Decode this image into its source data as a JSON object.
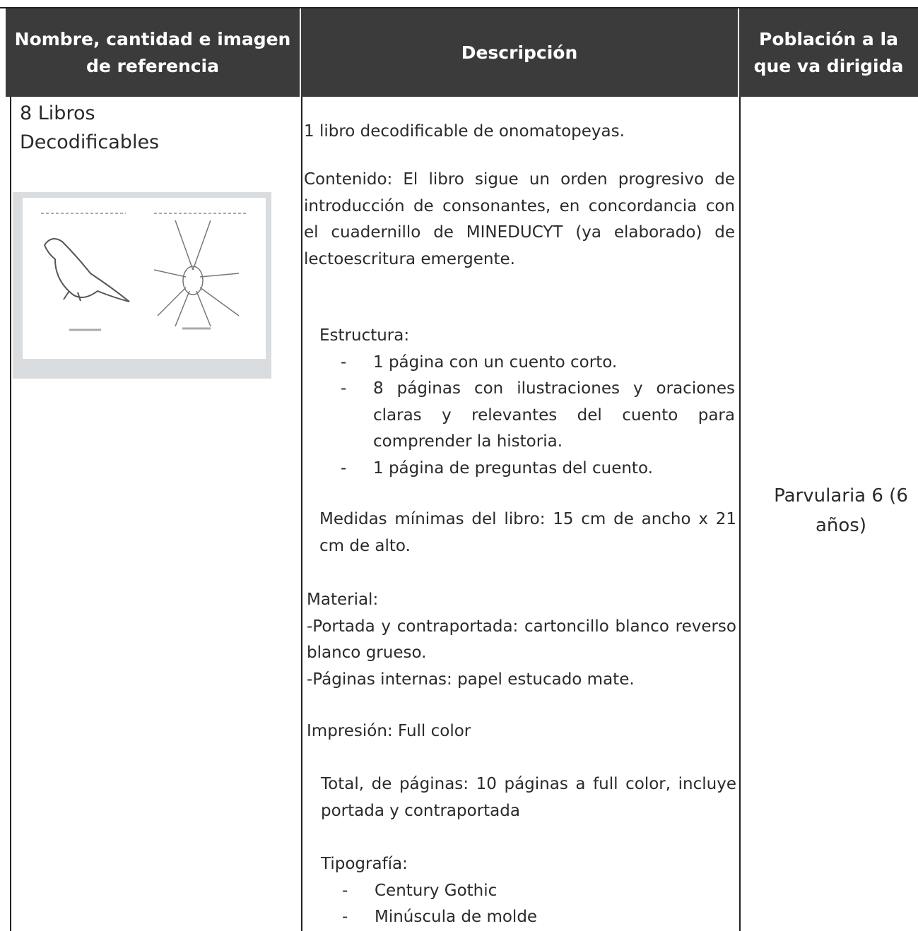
{
  "table": {
    "headers": [
      "Nombre, cantidad e imagen de referencia",
      "Descripción",
      "Población a la que va dirigida"
    ],
    "rows": [
      {
        "name": "8 Libros Decodificables",
        "description": {
          "intro": "1 libro decodificable de onomatopeyas.",
          "contenido": "Contenido: El libro sigue un orden progresivo de introducción de consonantes, en concordancia con el cuadernillo de MINEDUCYT (ya elaborado) de lectoescritura emergente.",
          "estructura": {
            "title": "Estructura:",
            "items": [
              "1 página con un cuento corto.",
              "8 páginas con ilustraciones y oraciones claras y relevantes del cuento para comprender la historia.",
              "1 página de preguntas del cuento."
            ]
          },
          "medidas": "Medidas mínimas del libro: 15 cm de ancho x 21 cm de alto.",
          "material": {
            "title": "Material:",
            "lines": [
              "-Portada y contraportada: cartoncillo blanco reverso blanco grueso.",
              "-Páginas internas: papel estucado mate."
            ]
          },
          "impresion": "Impresión: Full color",
          "total": "Total, de páginas: 10 páginas a full color, incluye portada y contraportada",
          "tipografia": {
            "title": "Tipografía:",
            "items": [
              "Century Gothic",
              "Minúscula de molde"
            ]
          }
        },
        "population": "Parvularia 6 (6 años)"
      }
    ]
  }
}
